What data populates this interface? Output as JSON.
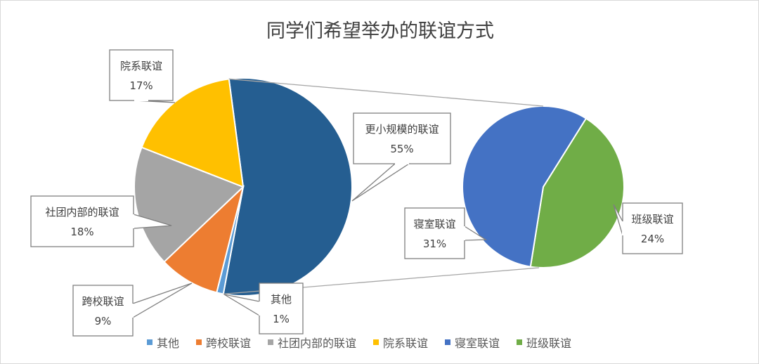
{
  "chart_data": {
    "type": "pie-of-pie",
    "title": "同学们希望举办的联谊方式",
    "main": [
      {
        "name": "更小规模的联谊",
        "value": 55,
        "label": "55%",
        "color": "#255e91"
      },
      {
        "name": "其他",
        "value": 1,
        "label": "1%",
        "color": "#5b9bd5"
      },
      {
        "name": "跨校联谊",
        "value": 9,
        "label": "9%",
        "color": "#ed7d31"
      },
      {
        "name": "社团内部的联谊",
        "value": 18,
        "label": "18%",
        "color": "#a5a5a5"
      },
      {
        "name": "院系联谊",
        "value": 17,
        "label": "17%",
        "color": "#ffc000"
      }
    ],
    "secondary": [
      {
        "name": "班级联谊",
        "value": 24,
        "label": "24%",
        "color": "#70ad47"
      },
      {
        "name": "寝室联谊",
        "value": 31,
        "label": "31%",
        "color": "#4472c4"
      }
    ],
    "legend": [
      {
        "name": "其他",
        "color": "#5b9bd5"
      },
      {
        "name": "跨校联谊",
        "color": "#ed7d31"
      },
      {
        "name": "社团内部的联谊",
        "color": "#a5a5a5"
      },
      {
        "name": "院系联谊",
        "color": "#ffc000"
      },
      {
        "name": "寝室联谊",
        "color": "#4472c4"
      },
      {
        "name": "班级联谊",
        "color": "#70ad47"
      }
    ],
    "legend_position": "bottom"
  }
}
